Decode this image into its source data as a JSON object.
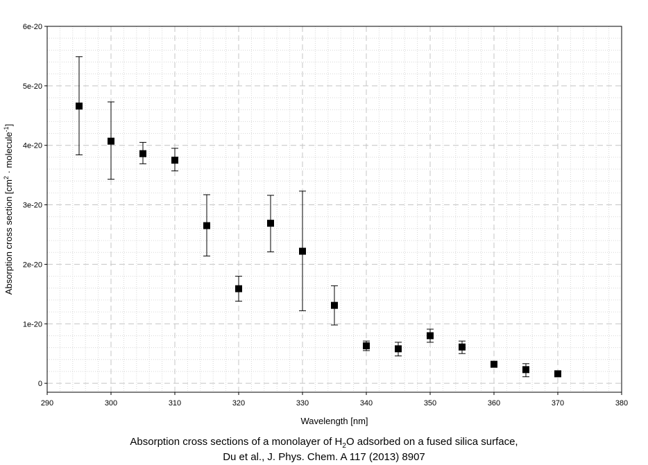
{
  "chart_data": {
    "type": "scatter",
    "title": "",
    "xlabel": "Wavelength [nm]",
    "ylabel": {
      "prefix": "Absorption cross section [cm",
      "sup1": "2",
      "middle": " · molecule",
      "sup2": "-1",
      "suffix": "]"
    },
    "xlim": [
      290,
      380
    ],
    "ylim": [
      -1.5e-21,
      6e-20
    ],
    "x_ticks": [
      290,
      300,
      310,
      320,
      330,
      340,
      350,
      360,
      370,
      380
    ],
    "y_ticks": [
      {
        "value": 0,
        "label": "0"
      },
      {
        "value": 1e-20,
        "label": "1e-20"
      },
      {
        "value": 2e-20,
        "label": "2e-20"
      },
      {
        "value": 3e-20,
        "label": "3e-20"
      },
      {
        "value": 4e-20,
        "label": "4e-20"
      },
      {
        "value": 5e-20,
        "label": "5e-20"
      },
      {
        "value": 6e-20,
        "label": "6e-20"
      }
    ],
    "grid": true,
    "marker_color": "#000000",
    "points": [
      {
        "x": 295,
        "y": 4.66e-20,
        "ylow": 3.84e-20,
        "yhigh": 5.49e-20
      },
      {
        "x": 300,
        "y": 4.07e-20,
        "ylow": 3.43e-20,
        "yhigh": 4.73e-20
      },
      {
        "x": 305,
        "y": 3.86e-20,
        "ylow": 3.69e-20,
        "yhigh": 4.05e-20
      },
      {
        "x": 310,
        "y": 3.75e-20,
        "ylow": 3.57e-20,
        "yhigh": 3.95e-20
      },
      {
        "x": 315,
        "y": 2.65e-20,
        "ylow": 2.14e-20,
        "yhigh": 3.17e-20
      },
      {
        "x": 320,
        "y": 1.59e-20,
        "ylow": 1.38e-20,
        "yhigh": 1.8e-20
      },
      {
        "x": 325,
        "y": 2.69e-20,
        "ylow": 2.21e-20,
        "yhigh": 3.16e-20
      },
      {
        "x": 330,
        "y": 2.22e-20,
        "ylow": 1.22e-20,
        "yhigh": 3.23e-20
      },
      {
        "x": 335,
        "y": 1.31e-20,
        "ylow": 9.8e-21,
        "yhigh": 1.64e-20
      },
      {
        "x": 340,
        "y": 6.3e-21,
        "ylow": 5.5e-21,
        "yhigh": 7.1e-21
      },
      {
        "x": 345,
        "y": 5.8e-21,
        "ylow": 4.6e-21,
        "yhigh": 6.9e-21
      },
      {
        "x": 350,
        "y": 8e-21,
        "ylow": 6.9e-21,
        "yhigh": 9.1e-21
      },
      {
        "x": 355,
        "y": 6.1e-21,
        "ylow": 5e-21,
        "yhigh": 7.1e-21
      },
      {
        "x": 360,
        "y": 3.2e-21,
        "ylow": 3.2e-21,
        "yhigh": 3.2e-21
      },
      {
        "x": 365,
        "y": 2.3e-21,
        "ylow": 1.1e-21,
        "yhigh": 3.3e-21
      },
      {
        "x": 370,
        "y": 1.6e-21,
        "ylow": 1.6e-21,
        "yhigh": 1.6e-21
      }
    ]
  },
  "caption": {
    "line1_prefix": "Absorption cross sections of a monolayer of H",
    "line1_sub": "2",
    "line1_suffix": "O adsorbed on a fused silica surface,",
    "line2": "Du et al., J. Phys. Chem. A 117 (2013) 8907"
  }
}
